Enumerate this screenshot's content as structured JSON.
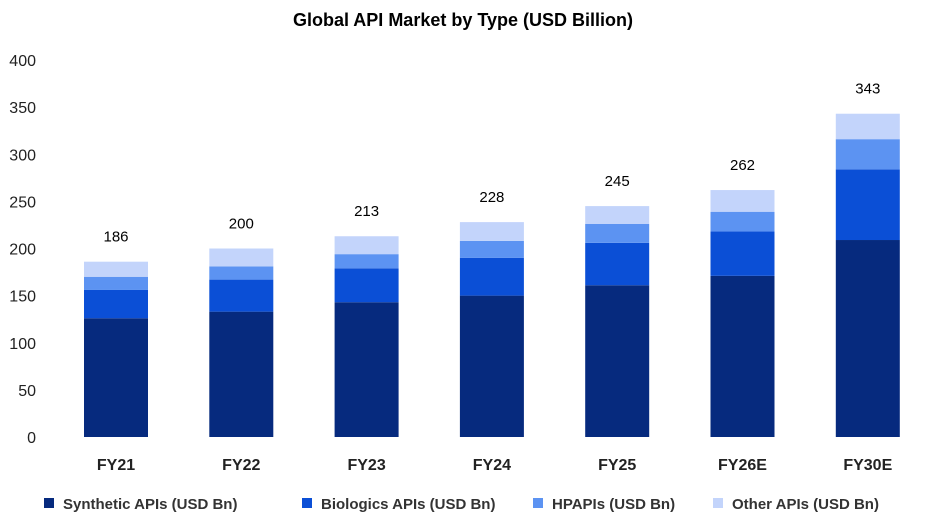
{
  "chart_data": {
    "type": "bar",
    "stacked": true,
    "title": "Global API Market by Type (USD Billion)",
    "xlabel": "",
    "ylabel": "",
    "ylim": [
      0,
      400
    ],
    "yticks": [
      0,
      50,
      100,
      150,
      200,
      250,
      300,
      350,
      400
    ],
    "grid": false,
    "legend": "bottom",
    "categories": [
      "FY21",
      "FY22",
      "FY23",
      "FY24",
      "FY25",
      "FY26E",
      "FY30E"
    ],
    "totals": [
      186,
      200,
      213,
      228,
      245,
      262,
      343
    ],
    "series": [
      {
        "name": "Synthetic APIs (USD Bn)",
        "color": "#062a7e",
        "values": [
          126,
          133,
          143,
          150,
          161,
          171,
          209
        ]
      },
      {
        "name": "Biologics APIs (USD Bn)",
        "color": "#0b4fd6",
        "values": [
          30,
          34,
          36,
          40,
          45,
          47,
          75
        ]
      },
      {
        "name": "HPAPIs (USD Bn)",
        "color": "#5c93f2",
        "values": [
          14,
          14,
          15,
          18,
          20,
          21,
          32
        ]
      },
      {
        "name": "Other APIs (USD Bn)",
        "color": "#c3d4fb",
        "values": [
          16,
          19,
          19,
          20,
          19,
          23,
          27
        ]
      }
    ]
  }
}
